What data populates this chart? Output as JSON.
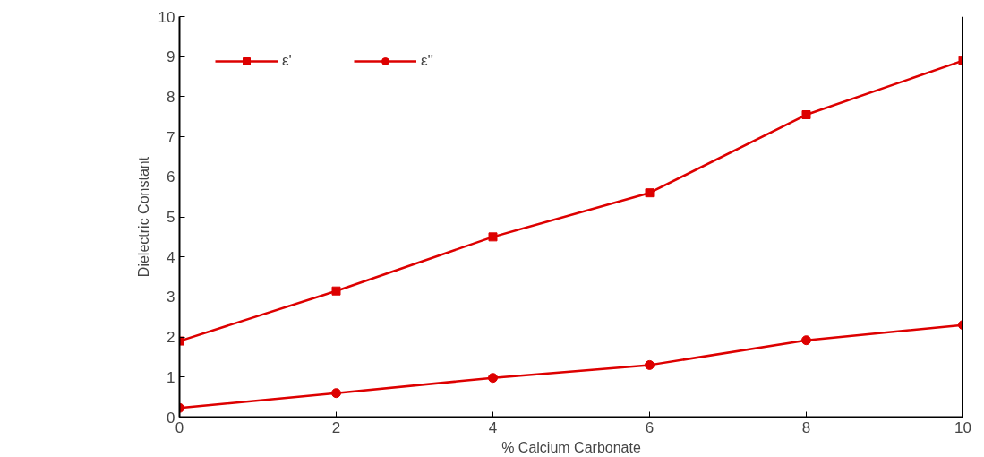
{
  "chart_data": {
    "type": "line",
    "xlabel": "% Calcium Carbonate",
    "ylabel": "Dielectric Constant",
    "x": [
      0,
      2,
      4,
      6,
      8,
      10
    ],
    "series": [
      {
        "name": "ε'",
        "color": "#dd0000",
        "marker": "square",
        "values": [
          1.9,
          3.15,
          4.5,
          5.6,
          7.55,
          8.9
        ]
      },
      {
        "name": "ε''",
        "color": "#dd0000",
        "marker": "circle",
        "values": [
          0.23,
          0.6,
          0.98,
          1.3,
          1.92,
          2.3
        ]
      }
    ],
    "xlim": [
      0,
      10
    ],
    "ylim": [
      0,
      10
    ],
    "xticks": [
      0,
      2,
      4,
      6,
      8,
      10
    ],
    "yticks": [
      0,
      1,
      2,
      3,
      4,
      5,
      6,
      7,
      8,
      9,
      10
    ],
    "grid": false,
    "legend": "top left",
    "line_style": "solid"
  }
}
